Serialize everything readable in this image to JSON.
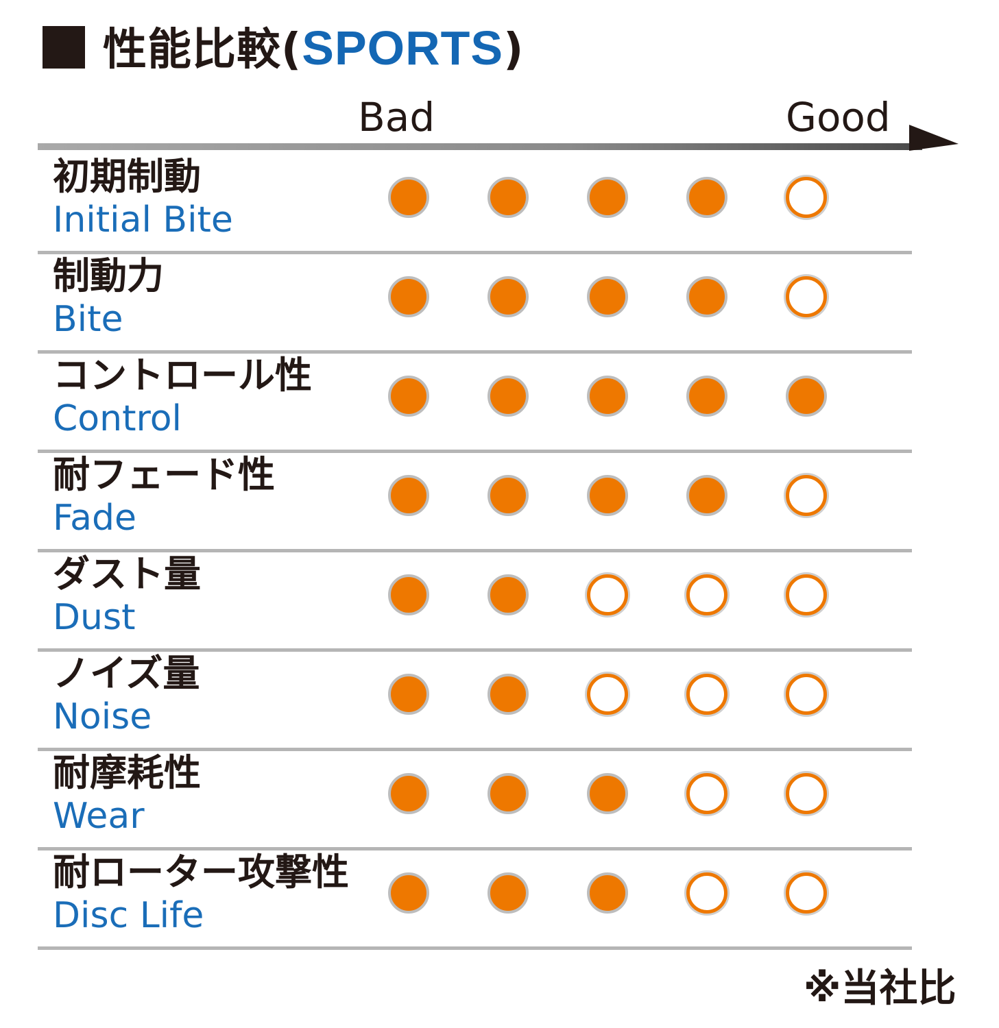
{
  "title": {
    "jp": "性能比較",
    "open_paren": "(",
    "series_name": "SPORTS",
    "close_paren": ")"
  },
  "scale": {
    "low_label": "Bad",
    "high_label": "Good"
  },
  "note": "※当社比",
  "colors": {
    "filled": "#ee7800",
    "accent_text": "#1a6db8",
    "title_sports": "#1467b4"
  },
  "chart_data": {
    "type": "table",
    "max_rating": 5,
    "categories": [
      {
        "jp": "初期制動",
        "en": "Initial Bite",
        "value": 4
      },
      {
        "jp": "制動力",
        "en": "Bite",
        "value": 4
      },
      {
        "jp": "コントロール性",
        "en": "Control",
        "value": 5
      },
      {
        "jp": "耐フェード性",
        "en": "Fade",
        "value": 4
      },
      {
        "jp": "ダスト量",
        "en": "Dust",
        "value": 2
      },
      {
        "jp": "ノイズ量",
        "en": "Noise",
        "value": 2
      },
      {
        "jp": "耐摩耗性",
        "en": "Wear",
        "value": 3
      },
      {
        "jp": "耐ローター攻撃性",
        "en": "Disc Life",
        "value": 3
      }
    ]
  }
}
